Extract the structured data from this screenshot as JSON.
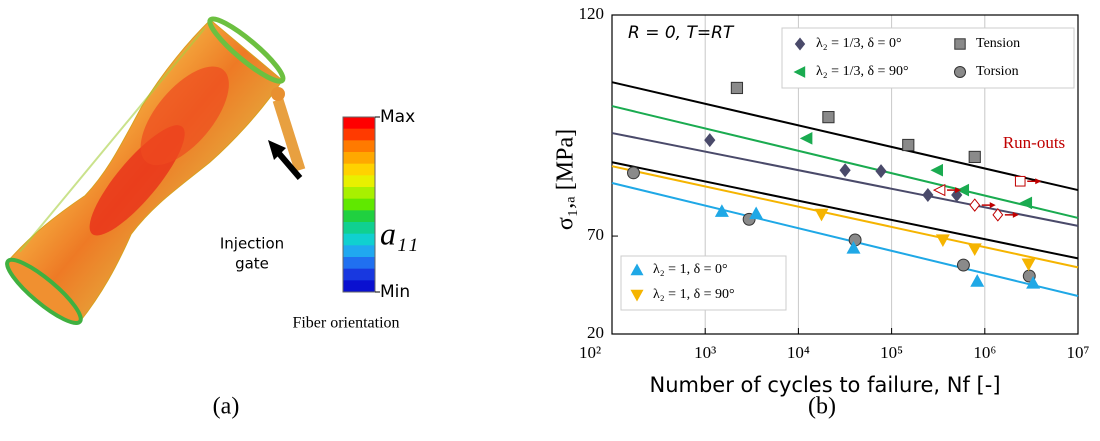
{
  "left_panel": {
    "colorbar_max": "Max",
    "colorbar_min": "Min",
    "symbol": "a₁₁",
    "gate_label": [
      "Injection",
      "gate"
    ],
    "caption": "Fiber orientation",
    "colorbar_colors": [
      "#ff0000",
      "#ff3a00",
      "#ff7a00",
      "#ffa800",
      "#ffd200",
      "#e8f000",
      "#a8f000",
      "#60e800",
      "#20d040",
      "#10d090",
      "#10d0d0",
      "#20a8f0",
      "#2070f0",
      "#1838e0",
      "#0a10d0"
    ]
  },
  "panel_labels": [
    "(a)",
    "(b)"
  ],
  "chart_data": {
    "type": "scatter",
    "annotation": "R = 0, T=RT",
    "xlabel": "Number of cycles to failure, Nf [-]",
    "ylabel": "σ₁,ₐ  [MPa]",
    "xscale": "log",
    "xlim": [
      100,
      10000000
    ],
    "xticks": [
      {
        "value": 100,
        "label": "10²"
      },
      {
        "value": 1000,
        "label": "10³"
      },
      {
        "value": 10000,
        "label": "10⁴"
      },
      {
        "value": 100000,
        "label": "10⁵"
      },
      {
        "value": 1000000,
        "label": "10⁶"
      },
      {
        "value": 10000000,
        "label": "10⁷"
      }
    ],
    "ylim": [
      20,
      120
    ],
    "yticks": [
      20,
      70,
      120
    ],
    "grid": true,
    "series": [
      {
        "name": "λ₂ = 1/3, δ = 0°",
        "marker": "diamond",
        "color": "#4a4a6a",
        "fit_color": "#4a4a6a",
        "x": [
          1120,
          31700,
          77000,
          245000,
          500000
        ],
        "values": [
          91.7,
          84.9,
          84.7,
          79.3,
          79.3
        ],
        "fit": [
          93.3,
          72.3
        ]
      },
      {
        "name": "λ₂ = 1/3, δ = 90°",
        "marker": "triangle-left",
        "color": "#1aab50",
        "fit_color": "#1aab50",
        "x": [
          12300,
          310000,
          590000,
          2800000
        ],
        "values": [
          92.1,
          84.9,
          80.4,
          77.5
        ],
        "fit": [
          99.4,
          74.1
        ]
      },
      {
        "name": "Tension",
        "marker": "square",
        "color": "#8a8a8a",
        "fit_color": "#000000",
        "x": [
          2190,
          21000,
          151000,
          780000
        ],
        "values": [
          103.5,
          96.9,
          90.6,
          87.9
        ],
        "fit": [
          104.8,
          80.4
        ]
      },
      {
        "name": "Torsion",
        "marker": "circle",
        "color": "#8a8a8a",
        "fit_color": "#000000",
        "x": [
          170,
          2960,
          40600,
          590000,
          3000000
        ],
        "values": [
          84.3,
          73.8,
          68.0,
          55.2,
          49.6
        ],
        "fit": [
          86.7,
          58.6
        ]
      },
      {
        "name": "λ₂ = 1, δ = 0°",
        "marker": "triangle-up",
        "color": "#1fa8e6",
        "fit_color": "#1fa8e6",
        "x": [
          1510,
          3520,
          39000,
          830000,
          3300000
        ],
        "values": [
          75.6,
          75.1,
          63.9,
          47.0,
          46.0
        ],
        "fit": [
          82.0,
          39.4
        ]
      },
      {
        "name": "λ₂ = 1, δ = 90°",
        "marker": "triangle-down",
        "color": "#f5b400",
        "fit_color": "#f5b400",
        "x": [
          17700,
          355000,
          780000,
          2950000
        ],
        "values": [
          74.9,
          68.0,
          63.4,
          55.7
        ],
        "fit": [
          85.8,
          54.0
        ]
      }
    ],
    "runouts": {
      "label": "Run-outs",
      "color": "#c00000",
      "markers": [
        "triangle-left",
        "diamond",
        "diamond",
        "square"
      ],
      "x": [
        331000,
        780000,
        1380000,
        2400000
      ],
      "values": [
        80.4,
        77.0,
        74.8,
        82.4
      ]
    }
  }
}
